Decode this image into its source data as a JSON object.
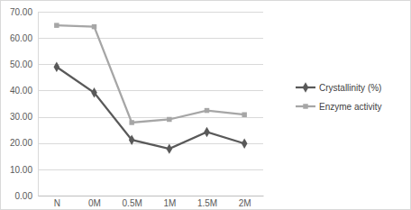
{
  "chart_data": {
    "type": "line",
    "categories": [
      "N",
      "0M",
      "0.5M",
      "1M",
      "1.5M",
      "2M"
    ],
    "series": [
      {
        "name": "Crystallinity (%)",
        "color": "#595959",
        "marker": "diamond",
        "values": [
          49,
          39.2,
          21.2,
          17.8,
          24.2,
          19.8
        ]
      },
      {
        "name": "Enzyme activity",
        "color": "#a6a6a6",
        "marker": "square",
        "values": [
          64.8,
          64.3,
          27.8,
          29,
          32.4,
          30.8
        ]
      }
    ],
    "ylim": [
      0,
      70
    ],
    "yticks": [
      {
        "value": 0,
        "label": "0.00"
      },
      {
        "value": 10,
        "label": "10.00"
      },
      {
        "value": 20,
        "label": "20.00"
      },
      {
        "value": 30,
        "label": "30.00"
      },
      {
        "value": 40,
        "label": "40.00"
      },
      {
        "value": 50,
        "label": "50.00"
      },
      {
        "value": 60,
        "label": "60.00"
      },
      {
        "value": 70,
        "label": "70.00"
      }
    ],
    "grid": true,
    "legend": "right"
  }
}
